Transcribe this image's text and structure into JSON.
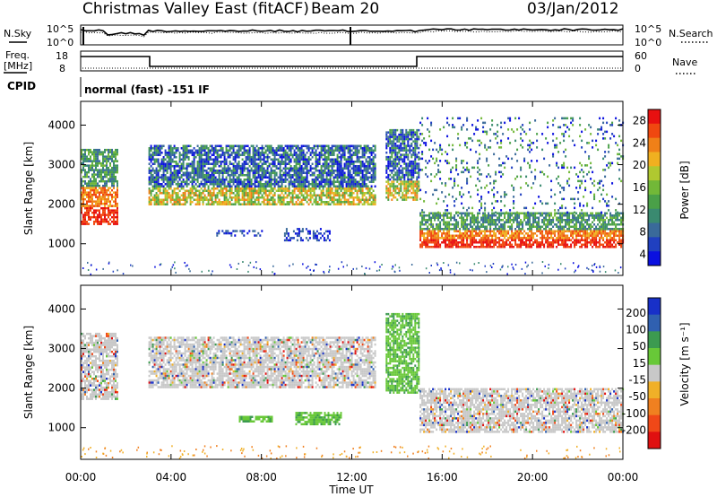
{
  "header": {
    "title": "Christmas Valley East (fitACF)",
    "beam": "Beam 20",
    "date": "03/Jan/2012"
  },
  "noise_panel": {
    "left_label": "N.Sky",
    "left_ticks": [
      "10^5",
      "10^0"
    ],
    "right_ticks": [
      "10^5",
      "10^0"
    ],
    "right_label": "N.Search"
  },
  "freq_panel": {
    "left_label_1": "Freq.",
    "left_label_2": "[MHz]",
    "left_ticks": [
      "18",
      "8"
    ],
    "right_ticks": [
      "60",
      "0"
    ],
    "right_label": "Nave"
  },
  "cpid": {
    "label": "CPID",
    "text": "normal (fast) -151 IF"
  },
  "chart_data": [
    {
      "type": "heatmap",
      "name": "power",
      "ylabel": "Slant Range [km]",
      "yticks": [
        "1000",
        "2000",
        "3000",
        "4000"
      ],
      "ytick_values": [
        1000,
        2000,
        3000,
        4000
      ],
      "ylim": [
        200,
        4600
      ],
      "xlim_hours": [
        0,
        24
      ],
      "colorbar": {
        "label": "Power [dB]",
        "ticks": [
          "4",
          "8",
          "12",
          "16",
          "20",
          "24",
          "28"
        ],
        "tick_values": [
          4,
          8,
          12,
          16,
          20,
          24,
          28
        ],
        "range": [
          2,
          30
        ],
        "colors": [
          "#0a10e0",
          "#2040c0",
          "#3a6a9a",
          "#3a8a70",
          "#4aa048",
          "#72b838",
          "#b0c830",
          "#f0b020",
          "#f08018",
          "#f04810",
          "#e81010"
        ]
      },
      "bands": [
        {
          "hours": [
            0.0,
            1.6
          ],
          "range_km": [
            1500,
            3400
          ],
          "level": "strong-low"
        },
        {
          "hours": [
            3.0,
            13.0
          ],
          "range_km": [
            2000,
            3500
          ],
          "level": "medium"
        },
        {
          "hours": [
            6.0,
            8.0
          ],
          "range_km": [
            1200,
            1350
          ],
          "level": "weak"
        },
        {
          "hours": [
            9.0,
            11.0
          ],
          "range_km": [
            1100,
            1400
          ],
          "level": "weak"
        },
        {
          "hours": [
            13.5,
            15.0
          ],
          "range_km": [
            2100,
            3900
          ],
          "level": "medium"
        },
        {
          "hours": [
            15.0,
            24.0
          ],
          "range_km": [
            900,
            1800
          ],
          "level": "strong"
        },
        {
          "hours": [
            15.0,
            24.0
          ],
          "range_km": [
            1800,
            4200
          ],
          "level": "scattered"
        }
      ]
    },
    {
      "type": "heatmap",
      "name": "velocity",
      "ylabel": "Slant Range [km]",
      "yticks": [
        "1000",
        "2000",
        "3000",
        "4000"
      ],
      "ytick_values": [
        1000,
        2000,
        3000,
        4000
      ],
      "ylim": [
        200,
        4600
      ],
      "xlim_hours": [
        0,
        24
      ],
      "xticks": [
        "00:00",
        "04:00",
        "08:00",
        "12:00",
        "16:00",
        "20:00",
        "00:00"
      ],
      "xtick_hours": [
        0,
        4,
        8,
        12,
        16,
        20,
        24
      ],
      "xlabel": "Time UT",
      "colorbar": {
        "label": "Velocity [m s⁻¹]",
        "ticks": [
          "200",
          "100",
          "50",
          "15",
          "-15",
          "-50",
          "-100",
          "-200"
        ],
        "colors": [
          "#1830c8",
          "#3060b0",
          "#3c9a50",
          "#68c838",
          "#c8c8c8",
          "#f0b028",
          "#f08020",
          "#f04818",
          "#e01010"
        ]
      },
      "bands": [
        {
          "hours": [
            0.0,
            1.6
          ],
          "range_km": [
            1700,
            3400
          ],
          "velocity": "near-zero"
        },
        {
          "hours": [
            3.0,
            13.0
          ],
          "range_km": [
            2000,
            3300
          ],
          "velocity": "near-zero"
        },
        {
          "hours": [
            7.0,
            8.5
          ],
          "range_km": [
            1150,
            1300
          ],
          "velocity": "positive"
        },
        {
          "hours": [
            9.5,
            11.5
          ],
          "range_km": [
            1100,
            1400
          ],
          "velocity": "positive"
        },
        {
          "hours": [
            13.5,
            15.0
          ],
          "range_km": [
            1900,
            3900
          ],
          "velocity": "positive"
        },
        {
          "hours": [
            15.0,
            24.0
          ],
          "range_km": [
            900,
            2000
          ],
          "velocity": "near-zero"
        }
      ]
    }
  ]
}
